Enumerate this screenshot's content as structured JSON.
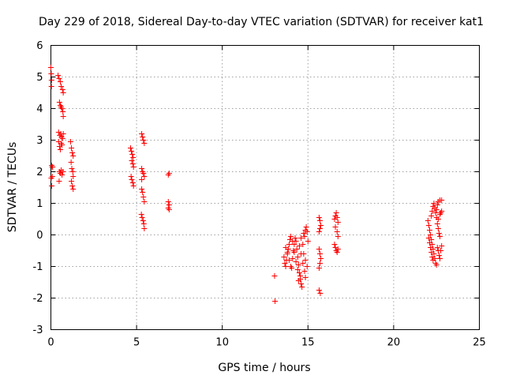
{
  "chart_data": {
    "type": "scatter",
    "title": "Day 229 of 2018, Sidereal Day-to-day VTEC variation (SDTVAR) for receiver kat1",
    "xlabel": "GPS time / hours",
    "ylabel": "SDTVAR / TECUs",
    "xlim": [
      0,
      25
    ],
    "ylim": [
      -3,
      6
    ],
    "xticks": [
      "0",
      "5",
      "10",
      "15",
      "20",
      "25"
    ],
    "yticks": [
      "-3",
      "-2",
      "-1",
      "0",
      "1",
      "2",
      "3",
      "4",
      "5",
      "6"
    ],
    "grid": true,
    "marker": "plus",
    "color": "#ff0000",
    "series": [
      {
        "name": "SDTVAR",
        "points": [
          [
            0.0,
            5.3
          ],
          [
            0.02,
            5.1
          ],
          [
            0.04,
            4.9
          ],
          [
            0.03,
            4.7
          ],
          [
            0.05,
            2.2
          ],
          [
            0.07,
            2.15
          ],
          [
            0.02,
            1.8
          ],
          [
            0.05,
            1.55
          ],
          [
            0.1,
            2.15
          ],
          [
            0.08,
            1.85
          ],
          [
            0.42,
            5.05
          ],
          [
            0.48,
            4.95
          ],
          [
            0.55,
            4.85
          ],
          [
            0.6,
            4.7
          ],
          [
            0.68,
            4.6
          ],
          [
            0.72,
            4.5
          ],
          [
            0.5,
            4.2
          ],
          [
            0.55,
            4.1
          ],
          [
            0.6,
            4.05
          ],
          [
            0.65,
            4.0
          ],
          [
            0.7,
            3.9
          ],
          [
            0.72,
            3.75
          ],
          [
            0.45,
            3.25
          ],
          [
            0.52,
            3.15
          ],
          [
            0.58,
            3.2
          ],
          [
            0.62,
            3.1
          ],
          [
            0.68,
            3.05
          ],
          [
            0.72,
            3.2
          ],
          [
            0.45,
            2.95
          ],
          [
            0.5,
            2.8
          ],
          [
            0.55,
            2.7
          ],
          [
            0.6,
            2.9
          ],
          [
            0.65,
            2.85
          ],
          [
            0.5,
            2.0
          ],
          [
            0.55,
            1.95
          ],
          [
            0.6,
            2.05
          ],
          [
            0.65,
            1.9
          ],
          [
            0.7,
            2.0
          ],
          [
            0.48,
            1.7
          ],
          [
            1.15,
            2.95
          ],
          [
            1.2,
            2.75
          ],
          [
            1.25,
            2.6
          ],
          [
            1.3,
            2.5
          ],
          [
            1.18,
            2.3
          ],
          [
            1.22,
            2.1
          ],
          [
            1.28,
            2.0
          ],
          [
            1.3,
            1.85
          ],
          [
            1.2,
            1.7
          ],
          [
            1.25,
            1.55
          ],
          [
            1.3,
            1.45
          ],
          [
            4.65,
            2.75
          ],
          [
            4.7,
            2.65
          ],
          [
            4.75,
            2.55
          ],
          [
            4.8,
            2.45
          ],
          [
            4.72,
            2.35
          ],
          [
            4.78,
            2.25
          ],
          [
            4.82,
            2.15
          ],
          [
            4.68,
            1.85
          ],
          [
            4.72,
            1.75
          ],
          [
            4.78,
            1.65
          ],
          [
            4.82,
            1.55
          ],
          [
            5.3,
            3.2
          ],
          [
            5.35,
            3.1
          ],
          [
            5.4,
            3.0
          ],
          [
            5.45,
            2.9
          ],
          [
            5.3,
            2.1
          ],
          [
            5.35,
            2.0
          ],
          [
            5.4,
            1.95
          ],
          [
            5.45,
            1.85
          ],
          [
            5.3,
            1.75
          ],
          [
            5.3,
            1.45
          ],
          [
            5.35,
            1.35
          ],
          [
            5.4,
            1.2
          ],
          [
            5.45,
            1.05
          ],
          [
            5.28,
            0.65
          ],
          [
            5.32,
            0.55
          ],
          [
            5.38,
            0.45
          ],
          [
            5.42,
            0.35
          ],
          [
            5.45,
            0.2
          ],
          [
            6.85,
            1.9
          ],
          [
            6.9,
            1.95
          ],
          [
            6.85,
            1.05
          ],
          [
            6.9,
            0.95
          ],
          [
            6.85,
            0.85
          ],
          [
            6.9,
            0.8
          ],
          [
            13.05,
            -1.3
          ],
          [
            13.08,
            -2.1
          ],
          [
            13.6,
            -0.7
          ],
          [
            13.65,
            -0.9
          ],
          [
            13.7,
            -1.0
          ],
          [
            13.75,
            -0.8
          ],
          [
            13.8,
            -0.55
          ],
          [
            13.85,
            -0.45
          ],
          [
            13.9,
            -0.3
          ],
          [
            13.95,
            -0.15
          ],
          [
            14.0,
            -0.05
          ],
          [
            13.7,
            -0.4
          ],
          [
            13.8,
            -0.6
          ],
          [
            13.9,
            -0.8
          ],
          [
            14.0,
            -1.0
          ],
          [
            14.05,
            -1.05
          ],
          [
            14.1,
            -0.75
          ],
          [
            14.15,
            -0.5
          ],
          [
            14.2,
            -0.3
          ],
          [
            14.25,
            -0.1
          ],
          [
            14.3,
            -0.2
          ],
          [
            14.35,
            -0.45
          ],
          [
            14.4,
            -0.7
          ],
          [
            14.45,
            -0.95
          ],
          [
            14.5,
            -1.2
          ],
          [
            14.55,
            -1.4
          ],
          [
            14.6,
            -1.55
          ],
          [
            14.65,
            -1.65
          ],
          [
            14.1,
            -0.2
          ],
          [
            14.2,
            -0.55
          ],
          [
            14.3,
            -0.85
          ],
          [
            14.4,
            -1.1
          ],
          [
            14.5,
            -0.35
          ],
          [
            14.6,
            -0.6
          ],
          [
            14.7,
            -0.9
          ],
          [
            14.8,
            -1.15
          ],
          [
            14.85,
            -1.35
          ],
          [
            14.6,
            -0.1
          ],
          [
            14.7,
            -0.3
          ],
          [
            14.75,
            0.05
          ],
          [
            14.8,
            -0.05
          ],
          [
            14.85,
            0.15
          ],
          [
            14.9,
            0.25
          ],
          [
            14.95,
            0.1
          ],
          [
            15.0,
            -0.2
          ],
          [
            14.75,
            -0.6
          ],
          [
            14.85,
            -0.8
          ],
          [
            14.95,
            -1.0
          ],
          [
            14.55,
            -1.3
          ],
          [
            14.45,
            -1.45
          ],
          [
            15.65,
            0.55
          ],
          [
            15.7,
            0.45
          ],
          [
            15.75,
            0.3
          ],
          [
            15.7,
            0.2
          ],
          [
            15.65,
            0.1
          ],
          [
            15.65,
            -0.45
          ],
          [
            15.7,
            -0.6
          ],
          [
            15.75,
            -0.75
          ],
          [
            15.7,
            -0.9
          ],
          [
            15.65,
            -1.05
          ],
          [
            15.65,
            -1.75
          ],
          [
            15.72,
            -1.85
          ],
          [
            16.55,
            0.5
          ],
          [
            16.6,
            0.6
          ],
          [
            16.65,
            0.7
          ],
          [
            16.7,
            0.55
          ],
          [
            16.75,
            0.4
          ],
          [
            16.6,
            0.25
          ],
          [
            16.7,
            0.1
          ],
          [
            16.75,
            -0.05
          ],
          [
            16.55,
            -0.3
          ],
          [
            16.6,
            -0.4
          ],
          [
            16.65,
            -0.5
          ],
          [
            16.7,
            -0.55
          ],
          [
            16.75,
            -0.45
          ],
          [
            22.0,
            0.45
          ],
          [
            22.05,
            0.3
          ],
          [
            22.1,
            0.15
          ],
          [
            22.15,
            0.0
          ],
          [
            22.2,
            -0.15
          ],
          [
            22.25,
            -0.3
          ],
          [
            22.3,
            -0.45
          ],
          [
            22.35,
            -0.6
          ],
          [
            22.4,
            -0.75
          ],
          [
            22.45,
            -0.9
          ],
          [
            22.5,
            -0.95
          ],
          [
            22.05,
            -0.1
          ],
          [
            22.1,
            -0.25
          ],
          [
            22.15,
            -0.4
          ],
          [
            22.2,
            -0.55
          ],
          [
            22.25,
            -0.7
          ],
          [
            22.3,
            -0.8
          ],
          [
            22.2,
            0.6
          ],
          [
            22.25,
            0.75
          ],
          [
            22.3,
            0.9
          ],
          [
            22.35,
            1.0
          ],
          [
            22.4,
            0.85
          ],
          [
            22.45,
            0.7
          ],
          [
            22.5,
            0.55
          ],
          [
            22.55,
            0.35
          ],
          [
            22.6,
            0.2
          ],
          [
            22.65,
            0.05
          ],
          [
            22.7,
            -0.05
          ],
          [
            22.5,
            0.8
          ],
          [
            22.55,
            0.95
          ],
          [
            22.6,
            1.05
          ],
          [
            22.7,
            1.1
          ],
          [
            22.8,
            1.1
          ],
          [
            22.55,
            -0.4
          ],
          [
            22.6,
            -0.5
          ],
          [
            22.65,
            -0.65
          ],
          [
            22.7,
            -0.75
          ],
          [
            22.75,
            -0.5
          ],
          [
            22.8,
            -0.35
          ],
          [
            22.6,
            0.5
          ],
          [
            22.7,
            0.65
          ],
          [
            22.75,
            0.7
          ],
          [
            22.8,
            0.75
          ]
        ]
      }
    ]
  }
}
